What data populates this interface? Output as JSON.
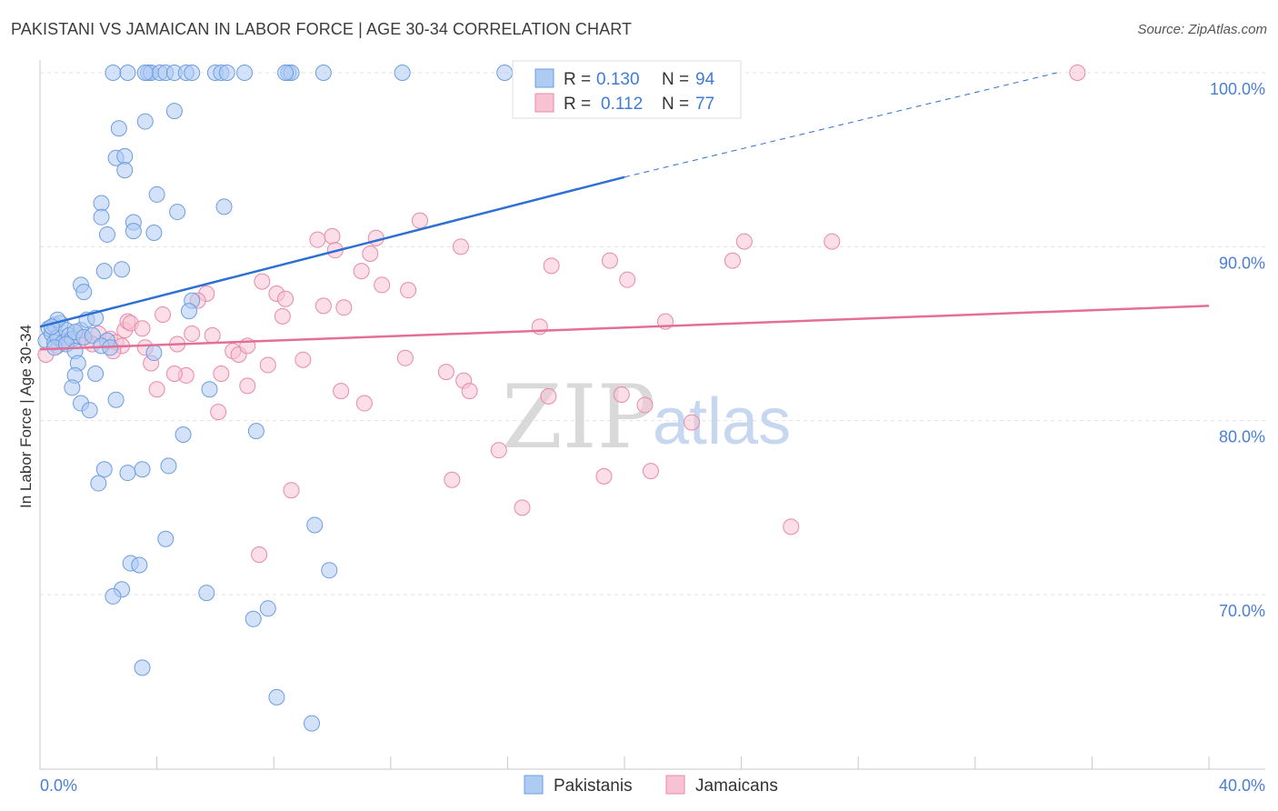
{
  "header": {
    "title": "PAKISTANI VS JAMAICAN IN LABOR FORCE | AGE 30-34 CORRELATION CHART",
    "source": "Source: ZipAtlas.com"
  },
  "watermark": {
    "zip": "ZIP",
    "atlas": "atlas"
  },
  "colors": {
    "pakistani_fill": "#aecbf2",
    "pakistani_stroke": "#6d9de0",
    "pakistani_line": "#2d6fd4",
    "jamaican_fill": "#f7c3d3",
    "jamaican_stroke": "#e88aa8",
    "jamaican_line": "#e36f98",
    "grid": "#e3e3e3",
    "axis_text": "#4a7fd0"
  },
  "legend": {
    "rows": [
      {
        "r_label": "R =",
        "r_value": "0.130",
        "n_label": "N =",
        "n_value": "94"
      },
      {
        "r_label": "R =",
        "r_value": "0.112",
        "n_label": "N =",
        "n_value": "77"
      }
    ]
  },
  "bottom_legend": [
    "Pakistanis",
    "Jamaicans"
  ],
  "chart_data": {
    "type": "scatter",
    "title": "PAKISTANI VS JAMAICAN IN LABOR FORCE | AGE 30-34 CORRELATION CHART",
    "xlabel": "",
    "ylabel": "In Labor Force | Age 30-34",
    "xlim": [
      0,
      40
    ],
    "ylim": [
      60.5,
      101.5
    ],
    "x_tick_labels": [
      "0.0%",
      "40.0%"
    ],
    "y_ticks": [
      70,
      80,
      90,
      100
    ],
    "y_tick_labels": [
      "70.0%",
      "80.0%",
      "90.0%",
      "100.0%"
    ],
    "series": [
      {
        "name": "Pakistanis",
        "R": 0.13,
        "N": 94,
        "trend": {
          "x0": 0,
          "y0": 85.4,
          "x1": 20,
          "y1": 94.0,
          "dash_to_x": 34.8,
          "dash_to_y": 100
        },
        "points": [
          [
            0.2,
            84.6
          ],
          [
            0.3,
            85.3
          ],
          [
            0.4,
            85.0
          ],
          [
            0.5,
            84.5
          ],
          [
            0.5,
            85.5
          ],
          [
            0.6,
            84.8
          ],
          [
            0.7,
            85.6
          ],
          [
            0.8,
            84.5
          ],
          [
            0.9,
            85.2
          ],
          [
            1.0,
            84.9
          ],
          [
            0.6,
            85.8
          ],
          [
            1.1,
            84.7
          ],
          [
            1.4,
            85.2
          ],
          [
            0.5,
            84.2
          ],
          [
            0.9,
            84.4
          ],
          [
            1.2,
            85.1
          ],
          [
            1.5,
            84.8
          ],
          [
            0.4,
            85.4
          ],
          [
            1.8,
            84.9
          ],
          [
            2.3,
            84.6
          ],
          [
            2.5,
            100
          ],
          [
            3.0,
            100
          ],
          [
            3.7,
            100
          ],
          [
            3.8,
            100
          ],
          [
            4.1,
            100
          ],
          [
            4.3,
            100
          ],
          [
            4.6,
            100
          ],
          [
            5.0,
            100
          ],
          [
            5.2,
            100
          ],
          [
            6.0,
            100
          ],
          [
            6.2,
            100
          ],
          [
            6.4,
            100
          ],
          [
            7.0,
            100
          ],
          [
            8.5,
            100
          ],
          [
            8.6,
            100
          ],
          [
            9.7,
            100
          ],
          [
            12.4,
            100
          ],
          [
            15.9,
            100
          ],
          [
            3.6,
            100
          ],
          [
            8.4,
            100
          ],
          [
            4.6,
            97.8
          ],
          [
            3.6,
            97.2
          ],
          [
            2.7,
            96.8
          ],
          [
            2.6,
            95.1
          ],
          [
            2.9,
            95.2
          ],
          [
            2.9,
            94.4
          ],
          [
            4.0,
            93.0
          ],
          [
            6.3,
            92.3
          ],
          [
            2.1,
            92.5
          ],
          [
            4.7,
            92.0
          ],
          [
            2.1,
            91.7
          ],
          [
            3.2,
            91.4
          ],
          [
            3.2,
            90.9
          ],
          [
            3.9,
            90.8
          ],
          [
            2.3,
            90.7
          ],
          [
            2.2,
            88.6
          ],
          [
            2.8,
            88.7
          ],
          [
            1.4,
            87.8
          ],
          [
            1.5,
            87.4
          ],
          [
            5.2,
            86.9
          ],
          [
            5.1,
            86.3
          ],
          [
            1.6,
            85.8
          ],
          [
            1.9,
            85.9
          ],
          [
            1.2,
            84.0
          ],
          [
            2.1,
            84.3
          ],
          [
            2.4,
            84.2
          ],
          [
            3.9,
            83.9
          ],
          [
            1.3,
            83.3
          ],
          [
            1.9,
            82.7
          ],
          [
            1.2,
            82.6
          ],
          [
            1.1,
            81.9
          ],
          [
            1.4,
            81.0
          ],
          [
            2.6,
            81.2
          ],
          [
            5.8,
            81.8
          ],
          [
            1.7,
            80.6
          ],
          [
            4.9,
            79.2
          ],
          [
            7.4,
            79.4
          ],
          [
            2.2,
            77.2
          ],
          [
            3.0,
            77.0
          ],
          [
            3.5,
            77.2
          ],
          [
            4.4,
            77.4
          ],
          [
            2.0,
            76.4
          ],
          [
            4.3,
            73.2
          ],
          [
            9.4,
            74.0
          ],
          [
            3.1,
            71.8
          ],
          [
            3.4,
            71.7
          ],
          [
            9.9,
            71.4
          ],
          [
            2.8,
            70.3
          ],
          [
            2.5,
            69.9
          ],
          [
            5.7,
            70.1
          ],
          [
            7.8,
            69.2
          ],
          [
            7.3,
            68.6
          ],
          [
            3.5,
            65.8
          ],
          [
            8.1,
            64.1
          ],
          [
            9.3,
            62.6
          ]
        ]
      },
      {
        "name": "Jamaicans",
        "R": 0.112,
        "N": 77,
        "trend": {
          "x0": 0,
          "y0": 84.1,
          "x1": 40,
          "y1": 86.6
        },
        "points": [
          [
            0.2,
            83.8
          ],
          [
            0.6,
            84.3
          ],
          [
            0.9,
            84.6
          ],
          [
            1.3,
            84.9
          ],
          [
            1.6,
            84.6
          ],
          [
            2.0,
            85.0
          ],
          [
            2.4,
            84.7
          ],
          [
            2.6,
            84.5
          ],
          [
            2.8,
            84.3
          ],
          [
            1.8,
            84.4
          ],
          [
            2.5,
            84.0
          ],
          [
            2.9,
            85.2
          ],
          [
            3.0,
            85.7
          ],
          [
            3.1,
            85.6
          ],
          [
            3.5,
            85.3
          ],
          [
            3.6,
            84.2
          ],
          [
            4.2,
            86.1
          ],
          [
            4.7,
            84.4
          ],
          [
            5.2,
            85.0
          ],
          [
            5.9,
            84.9
          ],
          [
            5.7,
            87.3
          ],
          [
            5.4,
            86.9
          ],
          [
            6.6,
            84.0
          ],
          [
            6.8,
            83.8
          ],
          [
            7.1,
            84.3
          ],
          [
            7.6,
            88.0
          ],
          [
            8.1,
            87.3
          ],
          [
            8.4,
            87.0
          ],
          [
            8.3,
            86.0
          ],
          [
            7.8,
            83.2
          ],
          [
            9.0,
            83.5
          ],
          [
            9.7,
            86.6
          ],
          [
            9.5,
            90.4
          ],
          [
            10.0,
            90.6
          ],
          [
            10.1,
            89.8
          ],
          [
            10.4,
            86.5
          ],
          [
            11.0,
            88.6
          ],
          [
            11.3,
            89.6
          ],
          [
            11.5,
            90.5
          ],
          [
            11.7,
            87.8
          ],
          [
            12.6,
            87.5
          ],
          [
            13.0,
            91.5
          ],
          [
            14.4,
            90.0
          ],
          [
            14.5,
            82.3
          ],
          [
            14.7,
            81.7
          ],
          [
            15.7,
            78.3
          ],
          [
            16.5,
            75.0
          ],
          [
            17.1,
            85.4
          ],
          [
            17.4,
            81.4
          ],
          [
            17.5,
            88.9
          ],
          [
            19.5,
            89.2
          ],
          [
            19.9,
            81.5
          ],
          [
            20.1,
            88.1
          ],
          [
            20.7,
            80.9
          ],
          [
            19.3,
            76.8
          ],
          [
            20.9,
            77.1
          ],
          [
            21.4,
            85.7
          ],
          [
            22.3,
            79.9
          ],
          [
            23.7,
            89.2
          ],
          [
            24.1,
            90.3
          ],
          [
            25.7,
            73.9
          ],
          [
            27.1,
            90.3
          ],
          [
            35.5,
            100
          ],
          [
            12.5,
            83.6
          ],
          [
            11.1,
            81.0
          ],
          [
            10.3,
            81.7
          ],
          [
            8.6,
            76.0
          ],
          [
            7.5,
            72.3
          ],
          [
            7.1,
            82.0
          ],
          [
            6.2,
            82.7
          ],
          [
            6.1,
            80.5
          ],
          [
            5.0,
            82.6
          ],
          [
            4.6,
            82.7
          ],
          [
            4.0,
            81.8
          ],
          [
            3.8,
            83.3
          ],
          [
            13.9,
            82.8
          ],
          [
            14.1,
            76.6
          ]
        ]
      }
    ]
  }
}
